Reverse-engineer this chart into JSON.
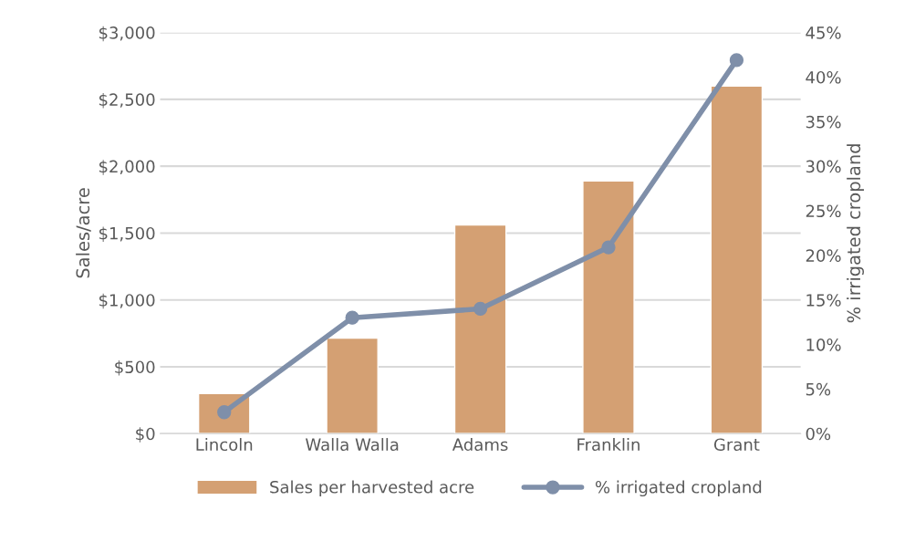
{
  "chart_data": {
    "type": "bar",
    "ylabel": "Sales/acre",
    "y2label": "% irrigated cropland",
    "categories": [
      "Lincoln",
      "Walla Walla",
      "Adams",
      "Franklin",
      "Grant"
    ],
    "series": [
      {
        "name": "Sales per harvested acre",
        "color": "#d4a073",
        "values": [
          300,
          715,
          1560,
          1890,
          2600
        ]
      },
      {
        "name": "% irrigated cropland",
        "type": "line",
        "axis": "y2",
        "color": "#7f8fa9",
        "marker": "circle",
        "values": [
          2.4,
          13,
          14,
          20.9,
          41.9
        ]
      }
    ],
    "ylim": [
      0,
      3000
    ],
    "yticks": [
      {
        "value": 0,
        "label": "$0"
      },
      {
        "value": 500,
        "label": "$500"
      },
      {
        "value": 1000,
        "label": "$1,000"
      },
      {
        "value": 1500,
        "label": "$1,500"
      },
      {
        "value": 2000,
        "label": "$2,000"
      },
      {
        "value": 2500,
        "label": "$2,500"
      },
      {
        "value": 3000,
        "label": "$3,000"
      }
    ],
    "y2lim": [
      0,
      45
    ],
    "y2ticks": [
      {
        "value": 0,
        "label": "0%"
      },
      {
        "value": 5,
        "label": "5%"
      },
      {
        "value": 10,
        "label": "10%"
      },
      {
        "value": 15,
        "label": "15%"
      },
      {
        "value": 20,
        "label": "20%"
      },
      {
        "value": 25,
        "label": "25%"
      },
      {
        "value": 30,
        "label": "30%"
      },
      {
        "value": 35,
        "label": "35%"
      },
      {
        "value": 40,
        "label": "40%"
      },
      {
        "value": 45,
        "label": "45%"
      }
    ],
    "grid": "y",
    "legend": "bottom"
  }
}
